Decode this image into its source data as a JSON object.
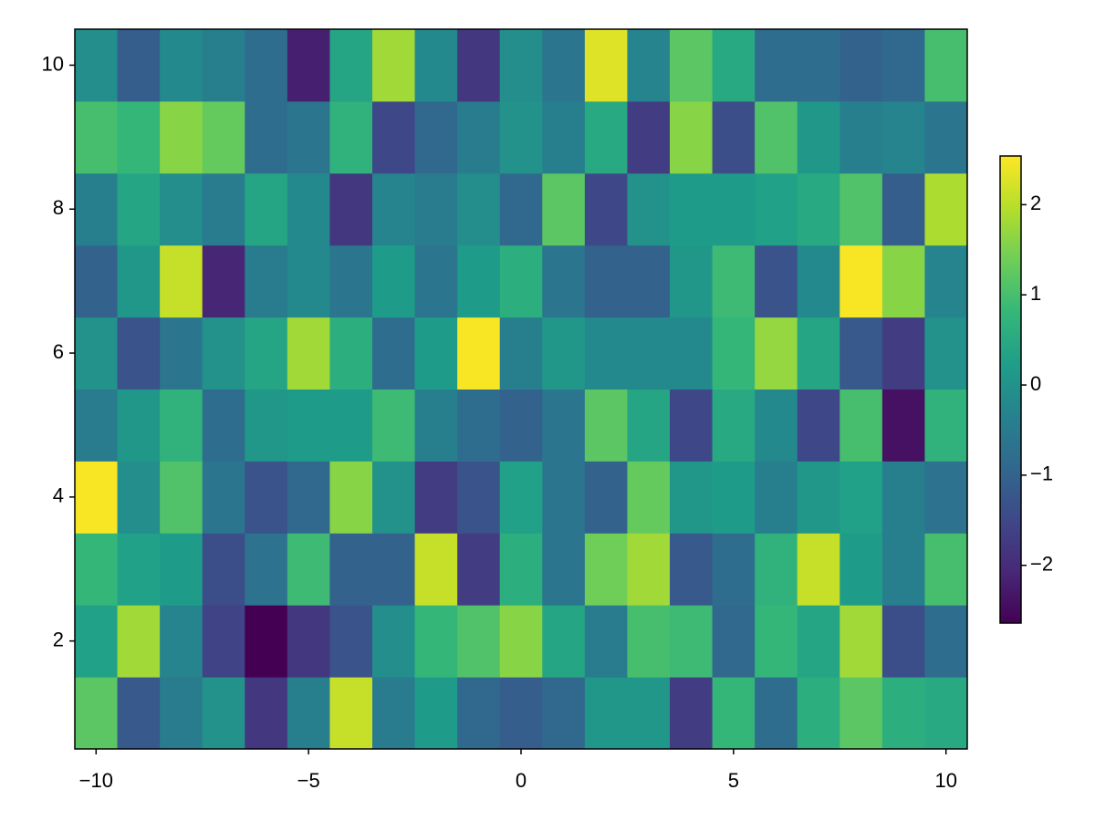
{
  "chart_data": {
    "type": "heatmap",
    "colormap": "viridis",
    "x": [
      -10,
      -9,
      -8,
      -7,
      -6,
      -5,
      -4,
      -3,
      -2,
      -1,
      0,
      1,
      2,
      3,
      4,
      5,
      6,
      7,
      8,
      9,
      10
    ],
    "y": [
      1,
      2,
      3,
      4,
      5,
      6,
      7,
      8,
      9,
      10
    ],
    "z": [
      [
        1.2,
        -1.2,
        -0.5,
        0.0,
        -1.8,
        -0.4,
        2.1,
        -0.5,
        0.2,
        -0.9,
        -1.1,
        -0.9,
        0.1,
        0.1,
        -1.7,
        0.8,
        -0.8,
        0.6,
        1.2,
        0.6,
        0.5
      ],
      [
        0.3,
        1.8,
        -0.3,
        -1.6,
        -2.64,
        -1.8,
        -1.3,
        -0.1,
        0.8,
        1.1,
        1.6,
        0.4,
        -0.5,
        1.0,
        0.9,
        -0.9,
        0.8,
        0.4,
        1.8,
        -1.4,
        -0.8
      ],
      [
        0.8,
        0.3,
        0.2,
        -1.4,
        -0.7,
        0.9,
        -1.0,
        -1.0,
        2.1,
        -1.7,
        0.6,
        -0.6,
        1.4,
        1.8,
        -1.2,
        -0.8,
        0.7,
        2.1,
        0.2,
        -0.4,
        1.0
      ],
      [
        2.5,
        -0.1,
        1.1,
        -0.6,
        -1.3,
        -0.9,
        1.6,
        0.0,
        -1.7,
        -1.3,
        0.3,
        -0.6,
        -1.0,
        1.3,
        0.1,
        0.2,
        -0.4,
        0.1,
        0.3,
        -0.4,
        -0.7
      ],
      [
        -0.5,
        0.1,
        0.7,
        -0.8,
        0.1,
        0.2,
        0.2,
        0.9,
        -0.4,
        -0.8,
        -1.0,
        -0.6,
        1.2,
        0.4,
        -1.5,
        0.5,
        -0.2,
        -1.5,
        1.0,
        -2.4,
        0.7
      ],
      [
        0.0,
        -1.3,
        -0.6,
        0.0,
        0.4,
        1.8,
        0.6,
        -0.8,
        0.2,
        2.5,
        -0.4,
        0.1,
        -0.2,
        -0.2,
        -0.2,
        0.8,
        1.7,
        0.4,
        -1.2,
        -1.7,
        0.0
      ],
      [
        -1.0,
        0.1,
        2.1,
        -2.1,
        -0.5,
        -0.2,
        -0.6,
        0.2,
        -0.6,
        0.2,
        0.6,
        -0.6,
        -1.0,
        -1.0,
        0.1,
        0.9,
        -1.3,
        -0.2,
        2.5,
        1.6,
        -0.3
      ],
      [
        -0.4,
        0.4,
        -0.1,
        -0.5,
        0.4,
        -0.2,
        -1.8,
        -0.3,
        -0.5,
        -0.1,
        -0.9,
        1.2,
        -1.5,
        0.0,
        0.2,
        0.2,
        0.3,
        0.5,
        1.1,
        -1.1,
        1.9
      ],
      [
        1.0,
        0.8,
        1.6,
        1.3,
        -0.8,
        -0.6,
        0.7,
        -1.5,
        -0.9,
        -0.5,
        0.0,
        -0.4,
        0.5,
        -1.7,
        1.6,
        -1.4,
        1.1,
        0.1,
        -0.4,
        -0.3,
        -0.6
      ],
      [
        -0.1,
        -1.1,
        -0.2,
        -0.4,
        -0.8,
        -2.2,
        0.4,
        1.8,
        -0.2,
        -1.8,
        -0.1,
        -0.6,
        2.3,
        -0.3,
        1.2,
        0.5,
        -0.8,
        -0.8,
        -1.0,
        -0.9,
        1.0
      ]
    ],
    "xlim": [
      -10.5,
      10.5
    ],
    "ylim": [
      0.5,
      10.5
    ],
    "xticks": [
      {
        "value": -10,
        "label": "−10"
      },
      {
        "value": -5,
        "label": "−5"
      },
      0,
      5,
      10
    ],
    "yticks": [
      2,
      4,
      6,
      8,
      10
    ],
    "clim": [
      -2.64,
      2.54
    ],
    "cticks": [
      {
        "value": -2,
        "label": "−2"
      },
      {
        "value": -1,
        "label": "−1"
      },
      0,
      1,
      2
    ]
  }
}
